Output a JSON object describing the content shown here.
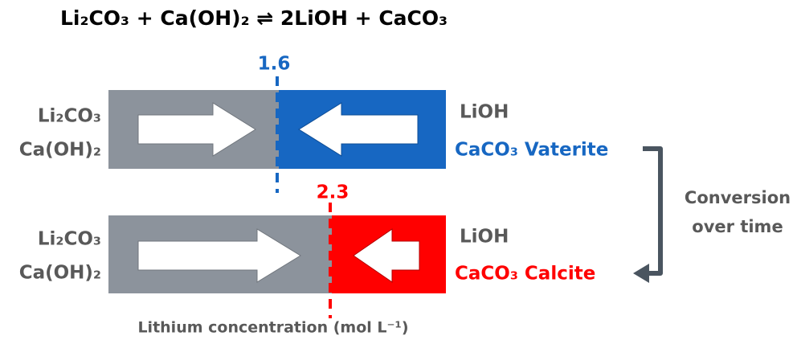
{
  "equation": "Li₂CO₃ + Ca(OH)₂ ⇌ 2LiOH + CaCO₃",
  "top": {
    "boundary": 1.6,
    "left_labels": [
      "Li₂CO₃",
      "Ca(OH)₂"
    ],
    "right_labels": [
      "LiOH",
      "CaCO₃ Vaterite"
    ]
  },
  "bottom": {
    "boundary": 2.3,
    "left_labels": [
      "Li₂CO₃",
      "Ca(OH)₂"
    ],
    "right_labels": [
      "LiOH",
      "CaCO₃ Calcite"
    ]
  },
  "connector_label": [
    "Conversion",
    "over time"
  ],
  "axis_label": "Lithium concentration (mol L⁻¹)"
}
